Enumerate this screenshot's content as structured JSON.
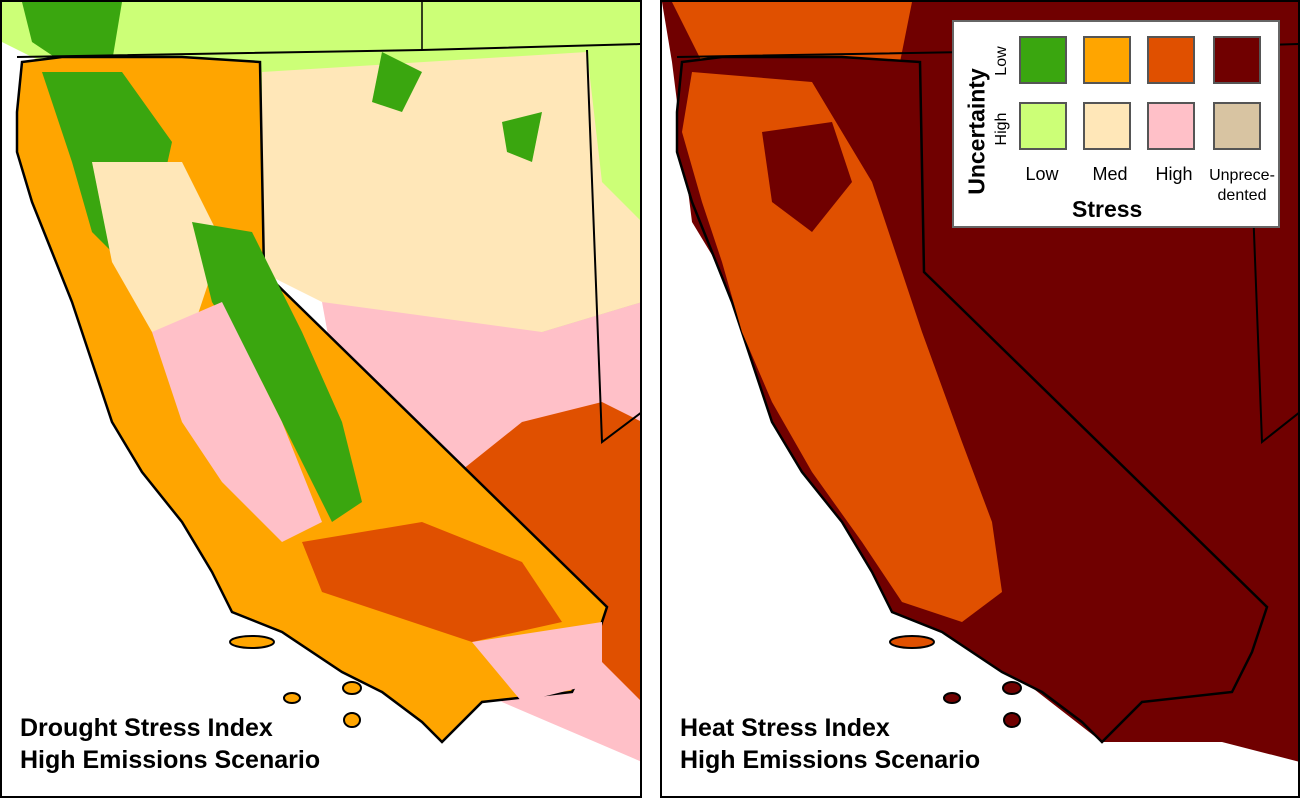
{
  "left_map": {
    "title_line1": "Drought Stress Index",
    "title_line2": "High Emissions Scenario"
  },
  "right_map": {
    "title_line1": "Heat Stress Index",
    "title_line2": "High Emissions Scenario"
  },
  "legend": {
    "y_axis_label": "Uncertainty",
    "row_low_label": "Low",
    "row_high_label": "High",
    "x_axis_label": "Stress",
    "col_labels": [
      "Low",
      "Med",
      "High"
    ],
    "col_unprecedented_line1": "Unprece-",
    "col_unprecedented_line2": "dented",
    "colors": {
      "low_uncertainty": [
        "#3aa60f",
        "#ffa500",
        "#e05000",
        "#700000"
      ],
      "high_uncertainty": [
        "#ccff77",
        "#ffe7b8",
        "#ffc0c8",
        "#d8c4a2"
      ]
    }
  }
}
